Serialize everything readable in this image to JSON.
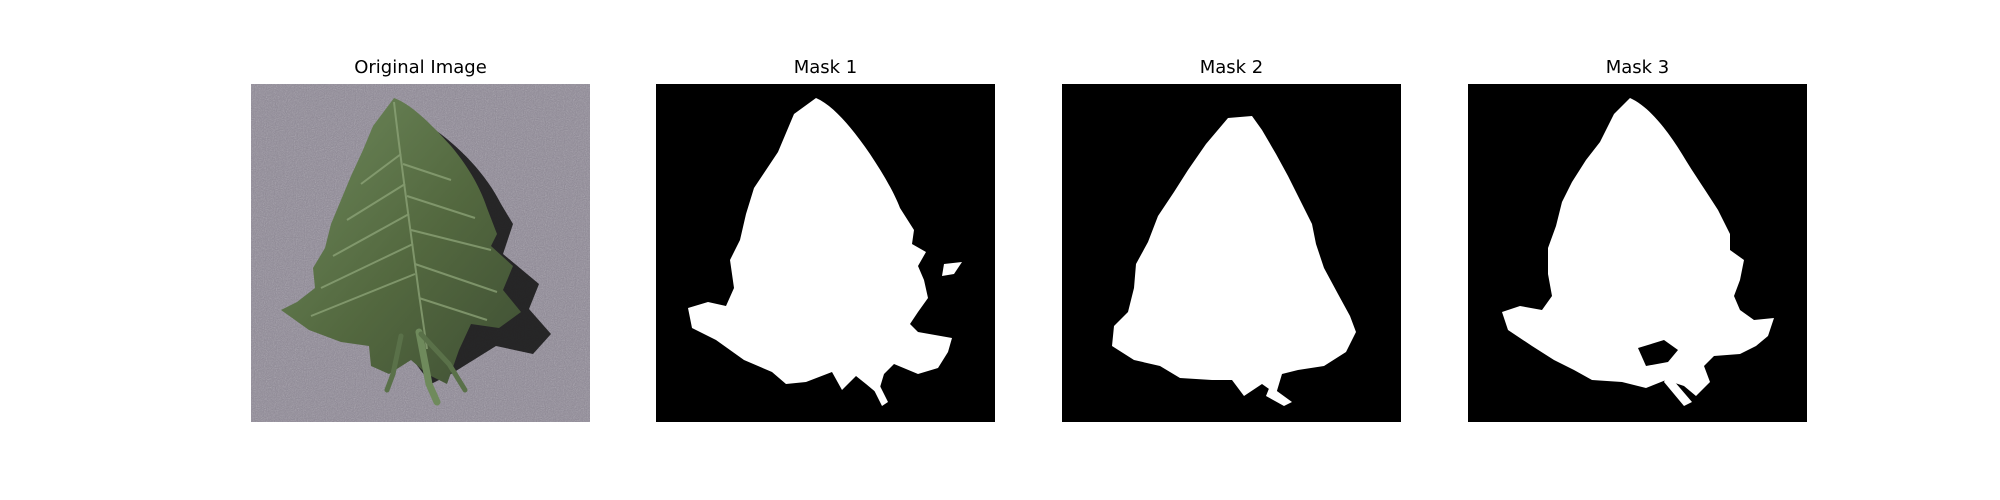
{
  "panels": [
    {
      "title": "Original Image",
      "icon": "leaf-photo"
    },
    {
      "title": "Mask 1",
      "icon": "leaf-mask"
    },
    {
      "title": "Mask 2",
      "icon": "leaf-mask"
    },
    {
      "title": "Mask 3",
      "icon": "leaf-mask"
    }
  ],
  "colors": {
    "background": "#ffffff",
    "photo_background": "#8e8896",
    "leaf_dark": "#3f4f34",
    "leaf_light": "#6f8a5c",
    "shadow": "#1a1a1a",
    "mask_foreground": "#ffffff",
    "mask_background": "#000000"
  }
}
